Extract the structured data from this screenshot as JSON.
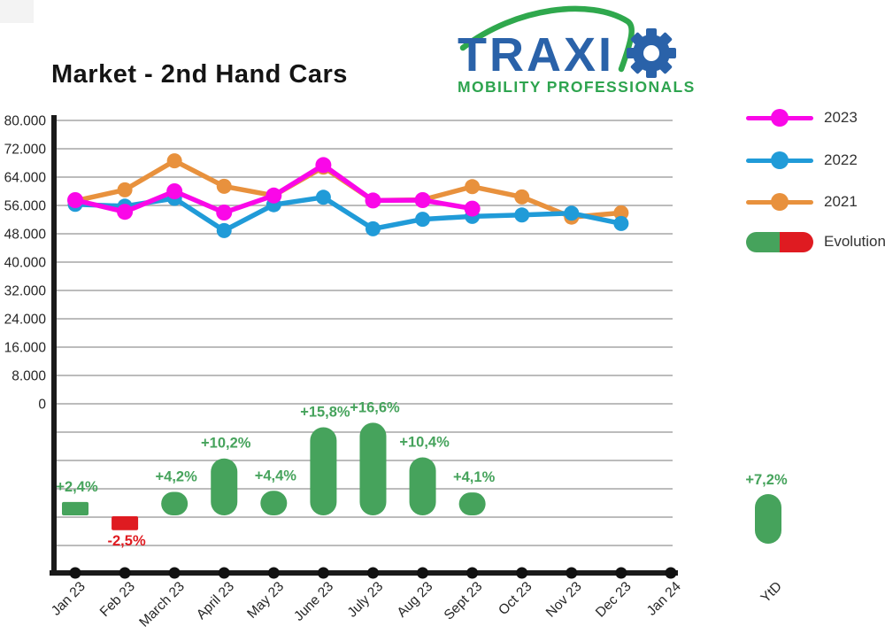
{
  "title": "Market - 2nd Hand Cars",
  "logo": {
    "brand_visible_text": "TRAXI",
    "gear_icon": "gear-as-letter-o",
    "tagline": "MOBILITY PROFESSIONALS",
    "blue": "#2A62A9",
    "green": "#2EA44F",
    "swoosh_color": "#2FA84D"
  },
  "legend": {
    "items": [
      {
        "label": "2023",
        "color": "#FA07E8",
        "type": "line"
      },
      {
        "label": "2022",
        "color": "#209BD8",
        "type": "line"
      },
      {
        "label": "2021",
        "color": "#E8913D",
        "type": "line"
      },
      {
        "label": "Evolution",
        "color_positive": "#46A35C",
        "color_negative": "#DF1B21",
        "type": "pill"
      }
    ]
  },
  "chart_data": {
    "type": "line",
    "title": "Market - 2nd Hand Cars",
    "x_categories": [
      "Jan 23",
      "Feb 23",
      "March 23",
      "April 23",
      "May 23",
      "June 23",
      "July 23",
      "Aug 23",
      "Sept 23",
      "Oct 23",
      "Nov 23",
      "Dec 23",
      "Jan 24"
    ],
    "ytd_category": "YtD",
    "y_axis": {
      "ticks": [
        "80.000",
        "72.000",
        "64.000",
        "56.000",
        "48.000",
        "40.000",
        "32.000",
        "24.000",
        "16.000",
        "8.000",
        "0"
      ],
      "min": 0,
      "max": 80000,
      "step": 8000,
      "grid": true
    },
    "series": [
      {
        "name": "2023",
        "color": "#FA07E8",
        "values": [
          57500,
          54200,
          60000,
          54000,
          58800,
          67400,
          57400,
          57500,
          55100
        ]
      },
      {
        "name": "2022",
        "color": "#209BD8",
        "values": [
          56300,
          55800,
          58000,
          48900,
          56200,
          58300,
          49400,
          52100,
          52900,
          53300,
          53800,
          50900
        ]
      },
      {
        "name": "2021",
        "color": "#E8913D",
        "values": [
          57300,
          60400,
          68600,
          61400,
          58800,
          66800,
          57400,
          57600,
          61300,
          58400,
          52700,
          53900
        ]
      }
    ],
    "evolution": {
      "name": "Evolution",
      "unit": "%",
      "positive_color": "#46A35C",
      "negative_color": "#DF1B21",
      "points": [
        {
          "month": "Jan 23",
          "pct": 2.4,
          "label": "+2,4%",
          "shape": "rect"
        },
        {
          "month": "Feb 23",
          "pct": -2.5,
          "label": "-2,5%",
          "shape": "rect"
        },
        {
          "month": "March 23",
          "pct": 4.2,
          "label": "+4,2%",
          "shape": "pill"
        },
        {
          "month": "April 23",
          "pct": 10.2,
          "label": "+10,2%",
          "shape": "pill"
        },
        {
          "month": "May 23",
          "pct": 4.4,
          "label": "+4,4%",
          "shape": "pill"
        },
        {
          "month": "June 23",
          "pct": 15.8,
          "label": "+15,8%",
          "shape": "pill"
        },
        {
          "month": "July 23",
          "pct": 16.6,
          "label": "+16,6%",
          "shape": "pill"
        },
        {
          "month": "Aug 23",
          "pct": 10.4,
          "label": "+10,4%",
          "shape": "pill"
        },
        {
          "month": "Sept 23",
          "pct": 4.1,
          "label": "+4,1%",
          "shape": "pill"
        }
      ],
      "ytd": {
        "category": "YtD",
        "pct": 7.2,
        "label": "+7,2%",
        "shape": "pill"
      }
    }
  }
}
